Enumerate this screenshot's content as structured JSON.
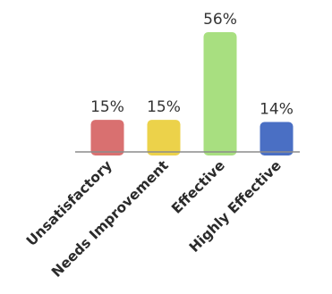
{
  "chart_data": {
    "type": "bar",
    "title": "",
    "xlabel": "",
    "ylabel": "",
    "ylim": [
      0,
      56
    ],
    "grid": false,
    "categories": [
      "Unsatisfactory",
      "Needs Improvement",
      "Effective",
      "Highly Effective"
    ],
    "values": [
      15,
      15,
      56,
      14
    ],
    "value_labels": [
      "15%",
      "15%",
      "56%",
      "14%"
    ],
    "colors": [
      "#d97070",
      "#ecd24a",
      "#a8df80",
      "#4a6fc4"
    ]
  }
}
